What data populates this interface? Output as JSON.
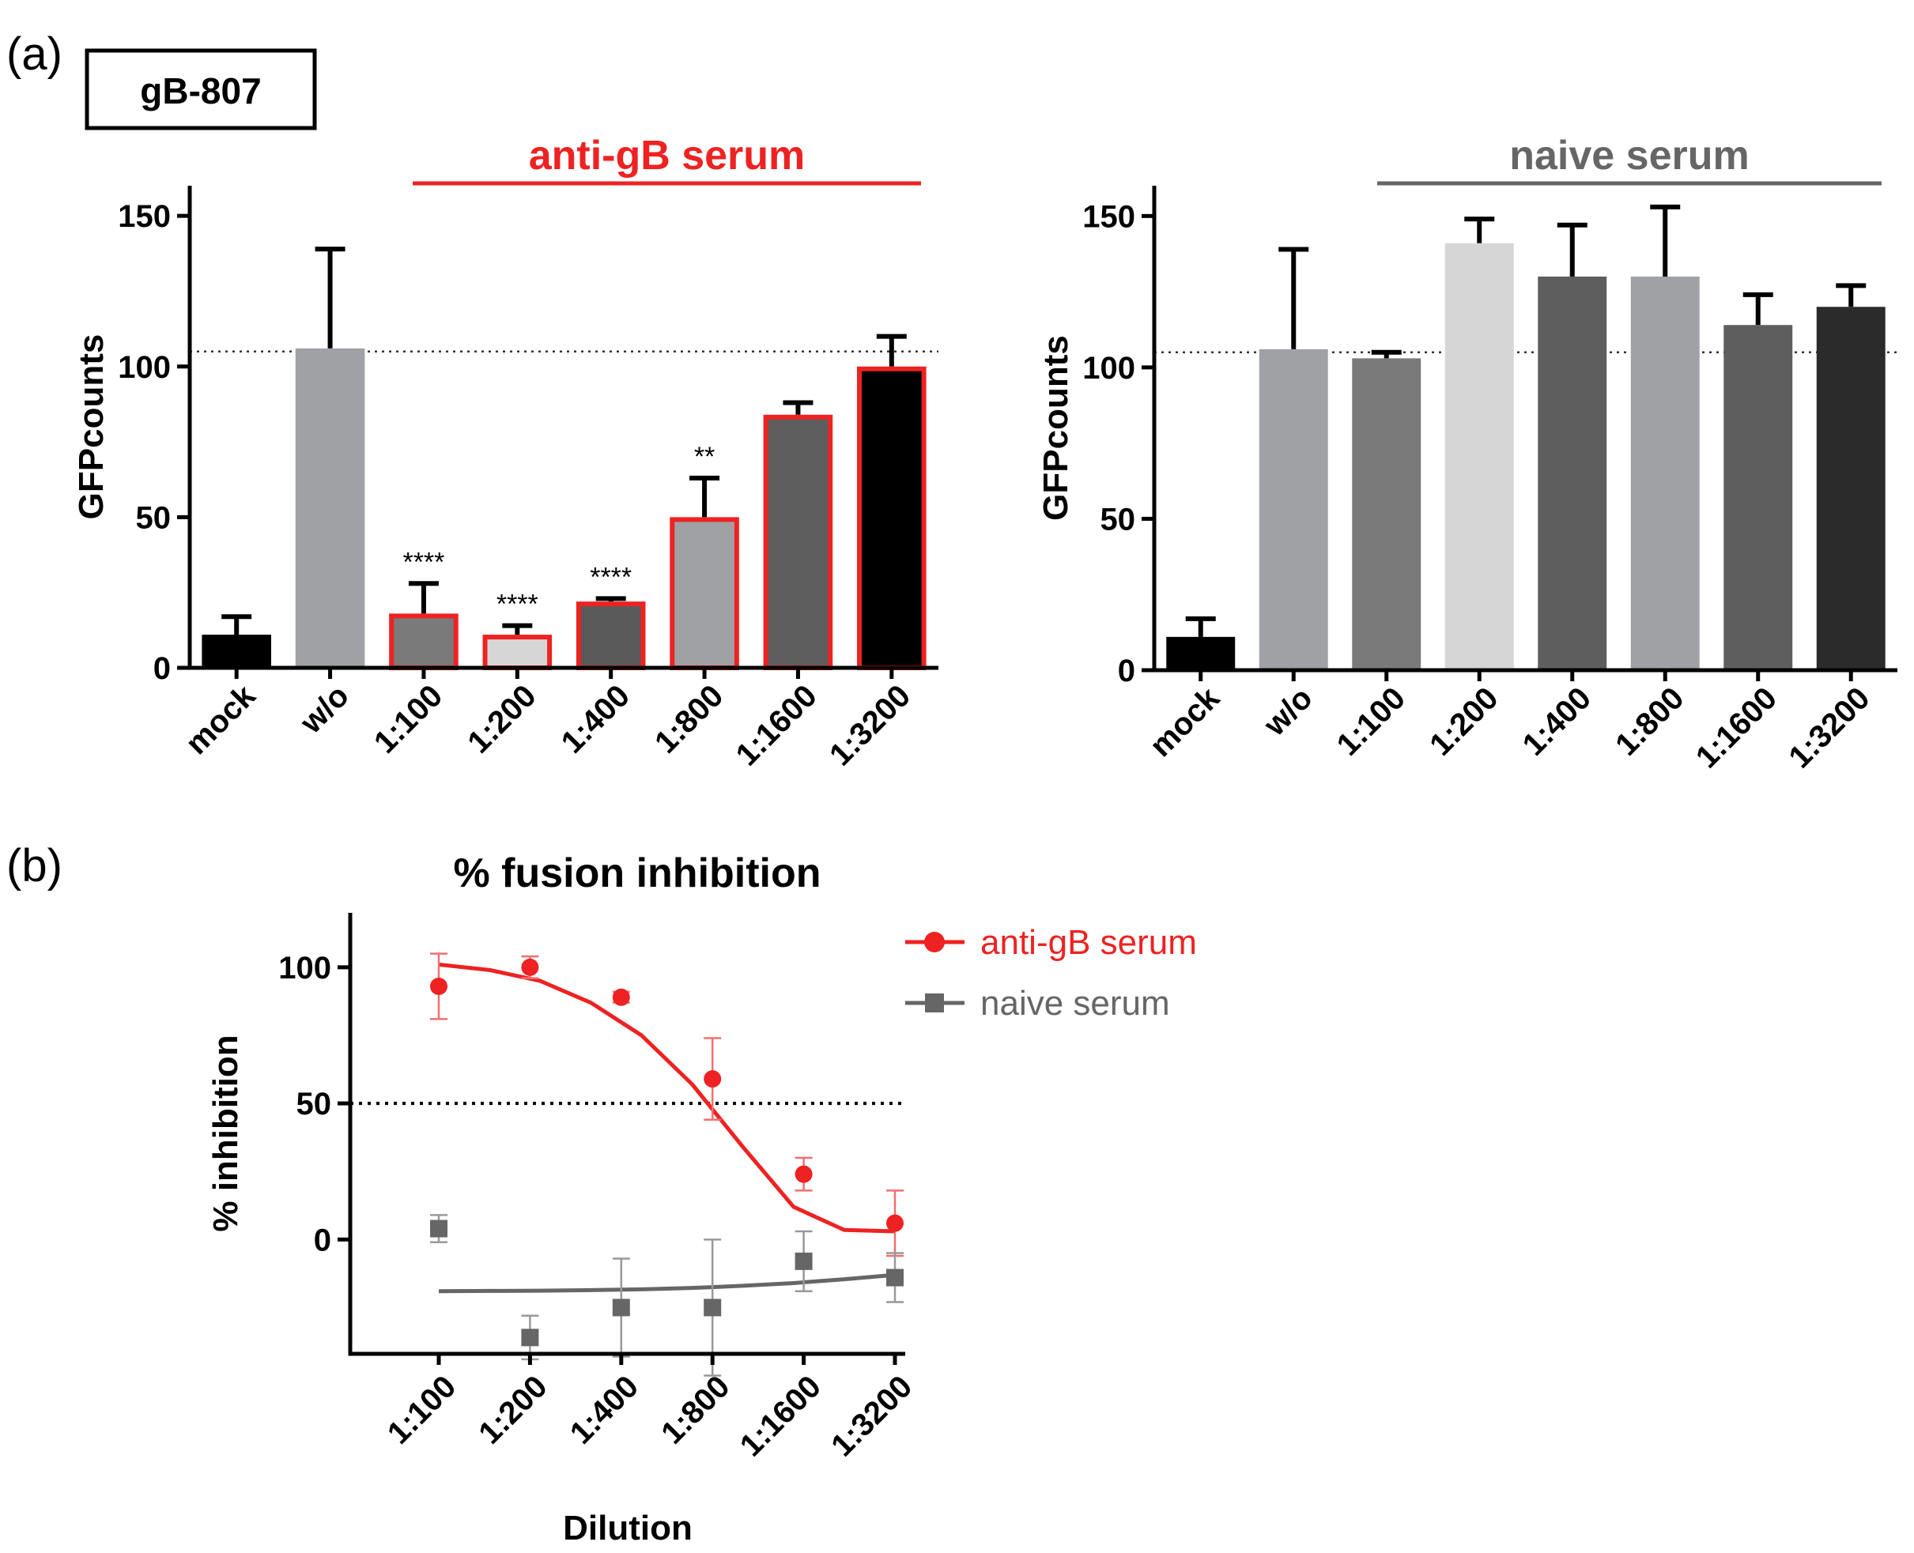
{
  "figure": {
    "panel_a_label": "(a)",
    "panel_b_label": "(b)",
    "construct_label": "gB-807"
  },
  "colors": {
    "red": "#ee2222",
    "gray_bracket": "#666666",
    "black": "#000000",
    "naive_marker": "#666666"
  },
  "chart_data": [
    {
      "id": "a_left",
      "type": "bar",
      "bracket_label": "anti-gB serum",
      "ylabel": "GFPcounts",
      "ylim": [
        0,
        160
      ],
      "yticks": [
        0,
        50,
        100,
        150
      ],
      "reference_line": 105,
      "categories": [
        "mock",
        "w/o",
        "1:100",
        "1:200",
        "1:400",
        "1:800",
        "1:1600",
        "1:3200"
      ],
      "values": [
        11,
        106,
        18,
        11,
        22,
        50,
        84,
        100
      ],
      "errors": [
        6,
        33,
        10,
        3,
        1,
        13,
        4,
        10
      ],
      "fills": [
        "#000000",
        "#a0a1a4",
        "#7a7a7a",
        "#d6d6d6",
        "#5a5a5a",
        "#a0a1a4",
        "#5e5e5e",
        "#000000"
      ],
      "outlined": [
        false,
        false,
        true,
        true,
        true,
        true,
        true,
        true
      ],
      "significance": [
        "",
        "",
        "****",
        "****",
        "****",
        "**",
        "",
        ""
      ]
    },
    {
      "id": "a_right",
      "type": "bar",
      "bracket_label": "naive serum",
      "ylabel": "GFPcounts",
      "ylim": [
        0,
        160
      ],
      "yticks": [
        0,
        50,
        100,
        150
      ],
      "reference_line": 105,
      "categories": [
        "mock",
        "w/o",
        "1:100",
        "1:200",
        "1:400",
        "1:800",
        "1:1600",
        "1:3200"
      ],
      "values": [
        11,
        106,
        103,
        141,
        130,
        130,
        114,
        120
      ],
      "errors": [
        6,
        33,
        2,
        8,
        17,
        23,
        10,
        7
      ],
      "fills": [
        "#000000",
        "#a0a1a4",
        "#7a7a7a",
        "#d6d6d6",
        "#5e5e5e",
        "#a0a1a4",
        "#5e5e5e",
        "#2b2b2b"
      ],
      "outlined": [
        false,
        false,
        false,
        false,
        false,
        false,
        false,
        false
      ],
      "significance": [
        "",
        "",
        "",
        "",
        "",
        "",
        "",
        ""
      ]
    },
    {
      "id": "b",
      "type": "scatter",
      "title": "% fusion inhibition",
      "xlabel": "Dilution",
      "ylabel": "% inhibition",
      "categories": [
        "1:100",
        "1:200",
        "1:400",
        "1:800",
        "1:1600",
        "1:3200"
      ],
      "ylim": [
        -42,
        120
      ],
      "yticks": [
        0,
        50,
        100
      ],
      "reference_line": 50,
      "series": [
        {
          "name": "anti-gB serum",
          "marker": "circle",
          "values": [
            93,
            100,
            89,
            59,
            24,
            6
          ],
          "errors": [
            12,
            4,
            2,
            15,
            6,
            12
          ],
          "fit": [
            101,
            99,
            95,
            87,
            75,
            57,
            34,
            12,
            3.5,
            3
          ]
        },
        {
          "name": "naive serum",
          "marker": "square",
          "values": [
            4,
            -36,
            -25,
            -25,
            -8,
            -14
          ],
          "errors": [
            5,
            8,
            18,
            25,
            11,
            9
          ],
          "fit": [
            -19,
            -18.9,
            -18.8,
            -18.6,
            -18.3,
            -17.8,
            -17.0,
            -16.0,
            -14.6,
            -13
          ]
        }
      ]
    }
  ]
}
